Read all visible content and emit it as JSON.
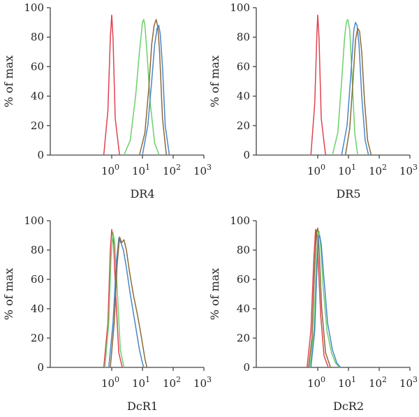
{
  "colors": {
    "red": "#e0424f",
    "green": "#6ccf6c",
    "blue": "#4a86c8",
    "brown": "#8b6a3a",
    "axis": "#444444",
    "text": "#222222"
  },
  "chart_data": [
    {
      "type": "line",
      "xlabel": "DR4",
      "ylabel": "% of max",
      "xscale": "log",
      "xlim": [
        0.01,
        1000
      ],
      "ylim": [
        0,
        100
      ],
      "xticks": [
        1,
        10,
        100,
        1000
      ],
      "xtick_labels": [
        [
          "10",
          "0"
        ],
        [
          "10",
          "1"
        ],
        [
          "10",
          "2"
        ],
        [
          "10",
          "3"
        ]
      ],
      "yticks": [
        0,
        20,
        40,
        60,
        80,
        100
      ],
      "series": [
        {
          "color": "red",
          "x": [
            0.55,
            0.75,
            0.9,
            1.0,
            1.1,
            1.3,
            1.8
          ],
          "y": [
            0,
            30,
            80,
            95,
            80,
            25,
            0
          ]
        },
        {
          "color": "green",
          "x": [
            2.5,
            4,
            6,
            8,
            10,
            11,
            12,
            14,
            18,
            25,
            35
          ],
          "y": [
            0,
            10,
            40,
            70,
            90,
            92,
            88,
            70,
            35,
            8,
            0
          ]
        },
        {
          "color": "brown",
          "x": [
            8,
            12,
            16,
            20,
            24,
            28,
            32,
            36,
            45,
            60
          ],
          "y": [
            0,
            15,
            45,
            75,
            88,
            92,
            86,
            70,
            25,
            0
          ]
        },
        {
          "color": "blue",
          "x": [
            10,
            15,
            20,
            25,
            30,
            34,
            38,
            45,
            55,
            75
          ],
          "y": [
            0,
            20,
            50,
            75,
            86,
            88,
            82,
            60,
            20,
            0
          ]
        }
      ]
    },
    {
      "type": "line",
      "xlabel": "DR5",
      "ylabel": "% of max",
      "xscale": "log",
      "xlim": [
        0.01,
        1000
      ],
      "ylim": [
        0,
        100
      ],
      "xticks": [
        1,
        10,
        100,
        1000
      ],
      "xtick_labels": [
        [
          "10",
          "0"
        ],
        [
          "10",
          "1"
        ],
        [
          "10",
          "2"
        ],
        [
          "10",
          "3"
        ]
      ],
      "yticks": [
        0,
        20,
        40,
        60,
        80,
        100
      ],
      "series": [
        {
          "color": "red",
          "x": [
            0.6,
            0.8,
            0.95,
            1.0,
            1.1,
            1.3,
            1.8
          ],
          "y": [
            0,
            35,
            85,
            95,
            80,
            25,
            0
          ]
        },
        {
          "color": "green",
          "x": [
            3,
            4.5,
            6,
            7.5,
            8.5,
            9.5,
            11,
            13,
            16,
            20
          ],
          "y": [
            0,
            15,
            50,
            80,
            90,
            92,
            85,
            55,
            15,
            0
          ]
        },
        {
          "color": "blue",
          "x": [
            6,
            9,
            12,
            15,
            17,
            19,
            22,
            27,
            35,
            45
          ],
          "y": [
            0,
            20,
            55,
            85,
            90,
            88,
            75,
            40,
            10,
            0
          ]
        },
        {
          "color": "brown",
          "x": [
            8,
            11,
            14,
            17,
            20,
            23,
            27,
            33,
            42,
            55
          ],
          "y": [
            0,
            18,
            50,
            78,
            86,
            84,
            70,
            38,
            10,
            0
          ]
        }
      ]
    },
    {
      "type": "line",
      "xlabel": "DcR1",
      "ylabel": "% of max",
      "xscale": "log",
      "xlim": [
        0.01,
        1000
      ],
      "ylim": [
        0,
        100
      ],
      "xticks": [
        1,
        10,
        100,
        1000
      ],
      "xtick_labels": [
        [
          "10",
          "0"
        ],
        [
          "10",
          "1"
        ],
        [
          "10",
          "2"
        ],
        [
          "10",
          "3"
        ]
      ],
      "yticks": [
        0,
        20,
        40,
        60,
        80,
        100
      ],
      "series": [
        {
          "color": "red",
          "x": [
            0.55,
            0.75,
            0.9,
            1.0,
            1.15,
            1.35,
            1.7,
            2.2
          ],
          "y": [
            0,
            30,
            80,
            94,
            85,
            50,
            10,
            0
          ]
        },
        {
          "color": "green",
          "x": [
            0.6,
            0.8,
            0.95,
            1.1,
            1.25,
            1.5,
            1.9,
            2.5
          ],
          "y": [
            0,
            30,
            75,
            92,
            85,
            55,
            12,
            0
          ]
        },
        {
          "color": "blue",
          "x": [
            0.8,
            1.1,
            1.4,
            1.7,
            2.0,
            2.4,
            3,
            4,
            6,
            8,
            10,
            11
          ],
          "y": [
            0,
            30,
            70,
            88,
            85,
            80,
            68,
            50,
            28,
            12,
            3,
            0
          ]
        },
        {
          "color": "brown",
          "x": [
            0.9,
            1.2,
            1.5,
            1.8,
            2.1,
            2.5,
            3,
            3.8,
            5,
            7,
            9,
            12,
            14
          ],
          "y": [
            0,
            30,
            70,
            89,
            85,
            87,
            80,
            65,
            50,
            35,
            22,
            6,
            0
          ]
        }
      ]
    },
    {
      "type": "line",
      "xlabel": "DcR2",
      "ylabel": "% of max",
      "xscale": "log",
      "xlim": [
        0.01,
        1000
      ],
      "ylim": [
        0,
        100
      ],
      "xticks": [
        1,
        10,
        100,
        1000
      ],
      "xtick_labels": [
        [
          "10",
          "0"
        ],
        [
          "10",
          "1"
        ],
        [
          "10",
          "2"
        ],
        [
          "10",
          "3"
        ]
      ],
      "yticks": [
        0,
        20,
        40,
        60,
        80,
        100
      ],
      "series": [
        {
          "color": "red",
          "x": [
            0.45,
            0.6,
            0.75,
            0.85,
            0.95,
            1.05,
            1.25,
            1.6,
            2.2
          ],
          "y": [
            0,
            25,
            75,
            94,
            90,
            70,
            35,
            8,
            0
          ]
        },
        {
          "color": "brown",
          "x": [
            0.5,
            0.65,
            0.8,
            0.9,
            1.0,
            1.12,
            1.35,
            1.8,
            2.6
          ],
          "y": [
            0,
            20,
            70,
            92,
            95,
            78,
            40,
            10,
            0
          ]
        },
        {
          "color": "green",
          "x": [
            0.55,
            0.75,
            0.9,
            1.0,
            1.1,
            1.25,
            1.5,
            2,
            2.8,
            3.8,
            5
          ],
          "y": [
            0,
            25,
            72,
            90,
            93,
            82,
            55,
            25,
            10,
            3,
            0
          ]
        },
        {
          "color": "blue",
          "x": [
            0.6,
            0.8,
            0.95,
            1.05,
            1.15,
            1.3,
            1.6,
            2.1,
            3,
            4.2,
            5.5
          ],
          "y": [
            0,
            25,
            70,
            88,
            90,
            84,
            60,
            30,
            12,
            3,
            0
          ]
        }
      ]
    }
  ]
}
